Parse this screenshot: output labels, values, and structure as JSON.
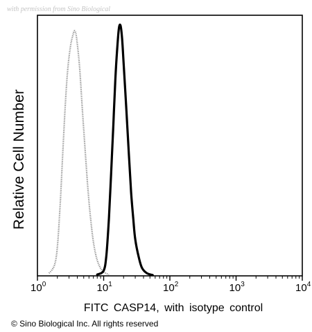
{
  "watermark": "with permission from Sino Biological",
  "copyright": "© Sino Biological Inc. All rights reserved",
  "chart_data": {
    "type": "line",
    "title": "",
    "xlabel": "FITC CASP14, with isotype control",
    "ylabel": "Relative Cell Number",
    "x_scale": "log",
    "xlim": [
      1,
      10000
    ],
    "x_ticks": [
      {
        "value": 1,
        "base": "10",
        "exp": "0"
      },
      {
        "value": 10,
        "base": "10",
        "exp": "1"
      },
      {
        "value": 100,
        "base": "10",
        "exp": "2"
      },
      {
        "value": 1000,
        "base": "10",
        "exp": "3"
      },
      {
        "value": 10000,
        "base": "10",
        "exp": "4"
      }
    ],
    "ylim": [
      0,
      100
    ],
    "grid": false,
    "legend": "none",
    "series": [
      {
        "role": "isotype-control",
        "style": "dotted-gray",
        "color": "#8a8a8a",
        "x": [
          1.5,
          1.8,
          2.0,
          2.2,
          2.4,
          2.6,
          2.8,
          3.0,
          3.2,
          3.4,
          3.6,
          3.8,
          4.0,
          4.3,
          4.6,
          5.0,
          5.4,
          5.8,
          6.3,
          7.0,
          8.0,
          9.5,
          12
        ],
        "y": [
          1,
          4,
          11,
          27,
          46,
          63,
          76,
          84,
          89,
          92,
          94,
          93,
          89,
          81,
          70,
          56,
          44,
          33,
          23,
          13,
          6,
          2,
          0.5
        ]
      },
      {
        "role": "CASP14",
        "style": "solid-black",
        "color": "#000000",
        "x": [
          8,
          10,
          11,
          12,
          13,
          14,
          15,
          16,
          17,
          18,
          19,
          20,
          22,
          24,
          26,
          28,
          30,
          34,
          38,
          45,
          55
        ],
        "y": [
          0.5,
          2,
          8,
          22,
          40,
          58,
          75,
          87,
          95,
          96,
          91,
          82,
          64,
          47,
          32,
          22,
          14,
          7,
          3,
          1,
          0.3
        ]
      }
    ]
  }
}
